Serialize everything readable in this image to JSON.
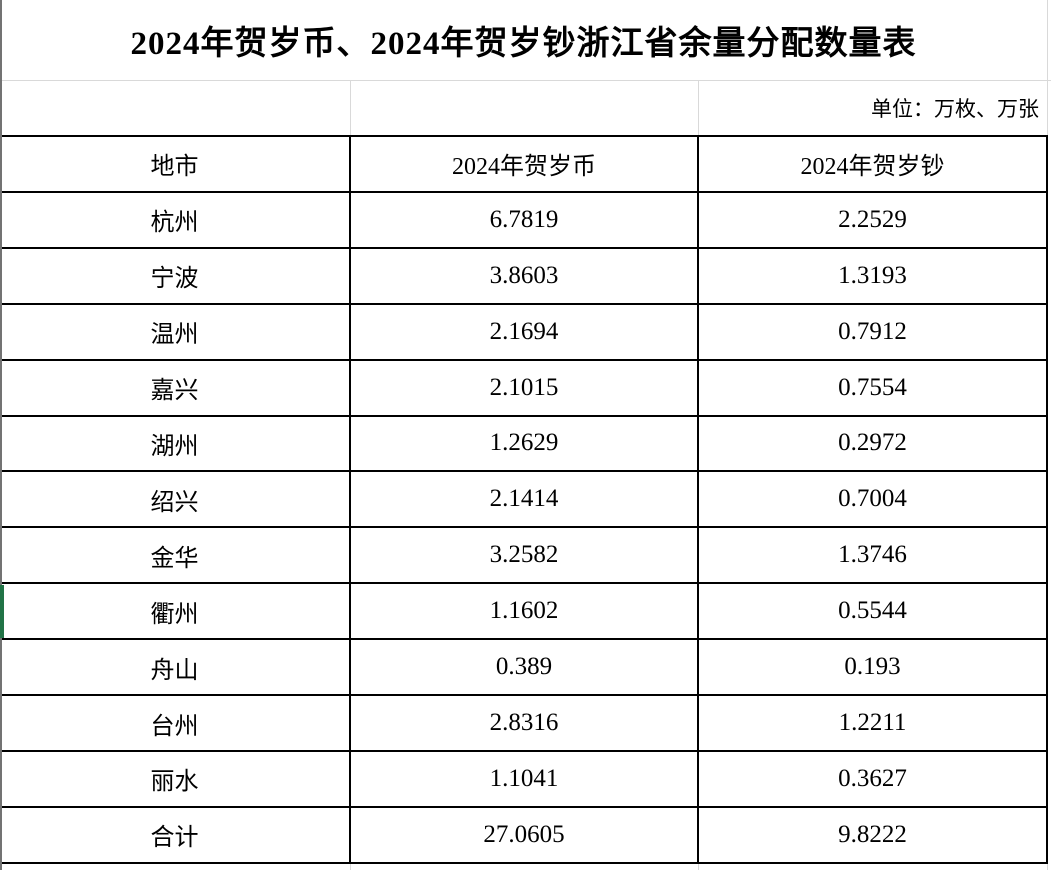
{
  "title": "2024年贺岁币、2024年贺岁钞浙江省余量分配数量表",
  "unit_note": "单位：万枚、万张",
  "table": {
    "columns": [
      "地市",
      "2024年贺岁币",
      "2024年贺岁钞"
    ],
    "rows": [
      [
        "杭州",
        "6.7819",
        "2.2529"
      ],
      [
        "宁波",
        "3.8603",
        "1.3193"
      ],
      [
        "温州",
        "2.1694",
        "0.7912"
      ],
      [
        "嘉兴",
        "2.1015",
        "0.7554"
      ],
      [
        "湖州",
        "1.2629",
        "0.2972"
      ],
      [
        "绍兴",
        "2.1414",
        "0.7004"
      ],
      [
        "金华",
        "3.2582",
        "1.3746"
      ],
      [
        "衢州",
        "1.1602",
        "0.5544"
      ],
      [
        "舟山",
        "0.389",
        "0.193"
      ],
      [
        "台州",
        "2.8316",
        "1.2211"
      ],
      [
        "丽水",
        "1.1041",
        "0.3627"
      ],
      [
        "合计",
        "27.0605",
        "9.8222"
      ]
    ],
    "highlighted_row": "衢州"
  },
  "colors": {
    "border_black": "#000000",
    "gridline_gray": "#d9d9d9",
    "edge_gray": "#737373",
    "row_marker_green": "#217346"
  }
}
